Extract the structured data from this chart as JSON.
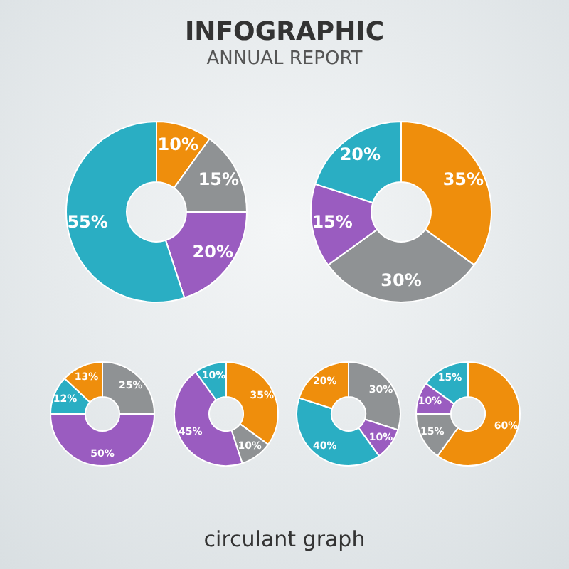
{
  "chart_data": [
    {
      "type": "donut",
      "title": "INFOGRAPHIC",
      "subtitle": "ANNUAL REPORT",
      "categories": [
        null,
        null,
        null,
        null
      ],
      "values": [
        10,
        15,
        20,
        55
      ],
      "colors": [
        "#ef8e0c",
        "#8f9294",
        "#9a5cc0",
        "#2aaec3"
      ],
      "value_labels": [
        "10%",
        "15%",
        "20%",
        "55%"
      ]
    },
    {
      "type": "donut",
      "categories": [
        null,
        null,
        null,
        null
      ],
      "values": [
        35,
        30,
        15,
        20
      ],
      "colors": [
        "#ef8e0c",
        "#8f9294",
        "#9a5cc0",
        "#2aaec3"
      ],
      "value_labels": [
        "35%",
        "30%",
        "15%",
        "20%"
      ]
    },
    {
      "type": "donut",
      "categories": [
        null,
        null,
        null,
        null
      ],
      "values": [
        25,
        50,
        12,
        13
      ],
      "colors": [
        "#8f9294",
        "#9a5cc0",
        "#2aaec3",
        "#ef8e0c"
      ],
      "value_labels": [
        "25%",
        "50%",
        "12%",
        "13%"
      ]
    },
    {
      "type": "donut",
      "categories": [
        null,
        null,
        null,
        null
      ],
      "values": [
        35,
        10,
        45,
        10
      ],
      "colors": [
        "#ef8e0c",
        "#8f9294",
        "#9a5cc0",
        "#2aaec3"
      ],
      "value_labels": [
        "35%",
        "10%",
        "45%",
        "10%"
      ]
    },
    {
      "type": "donut",
      "categories": [
        null,
        null,
        null,
        null
      ],
      "values": [
        30,
        10,
        40,
        20
      ],
      "colors": [
        "#8f9294",
        "#9a5cc0",
        "#2aaec3",
        "#ef8e0c"
      ],
      "value_labels": [
        "30%",
        "10%",
        "40%",
        "20%"
      ]
    },
    {
      "type": "donut",
      "annotations": [
        "circulant graph"
      ],
      "categories": [
        null,
        null,
        null,
        null
      ],
      "values": [
        60,
        15,
        10,
        15
      ],
      "colors": [
        "#ef8e0c",
        "#8f9294",
        "#9a5cc0",
        "#2aaec3"
      ],
      "value_labels": [
        "60%",
        "15%",
        "10%",
        "15%"
      ]
    }
  ]
}
